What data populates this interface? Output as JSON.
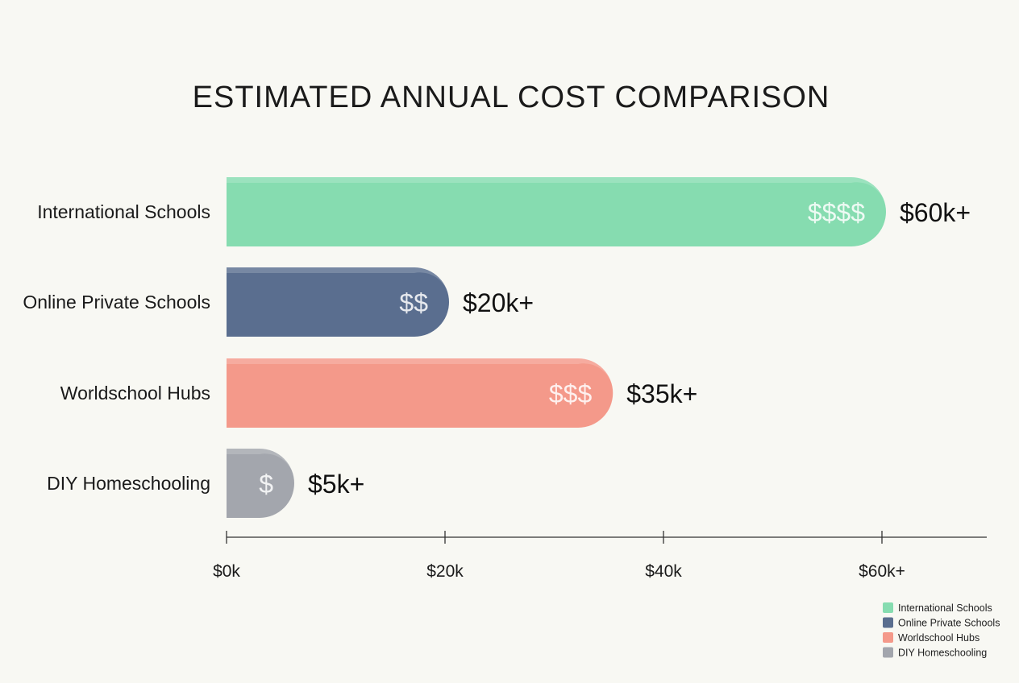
{
  "chart_data": {
    "type": "bar",
    "orientation": "horizontal",
    "title": "ESTIMATED ANNUAL COST COMPARISON",
    "categories": [
      "International Schools",
      "Online Private Schools",
      "Worldschool Hubs",
      "DIY Homeschooling"
    ],
    "values": [
      60,
      20,
      35,
      5
    ],
    "unit": "$k",
    "value_labels": [
      "$60k+",
      "$20k+",
      "$35k+",
      "$5k+"
    ],
    "cost_symbols": [
      "$$$$",
      "$$",
      "$$$",
      "$"
    ],
    "colors": [
      "#86dcb0",
      "#5a6e8f",
      "#f4998a",
      "#a3a6ad"
    ],
    "x_ticks": [
      0,
      20,
      40,
      60
    ],
    "x_tick_labels": [
      "$0k",
      "$20k",
      "$40k",
      "$60k+"
    ],
    "xlim": [
      0,
      70
    ],
    "grid": false,
    "legend": {
      "placement": "bottom-right",
      "entries": [
        "International Schools",
        "Online Private Schools",
        "Worldschool Hubs",
        "DIY Homeschooling"
      ]
    }
  }
}
